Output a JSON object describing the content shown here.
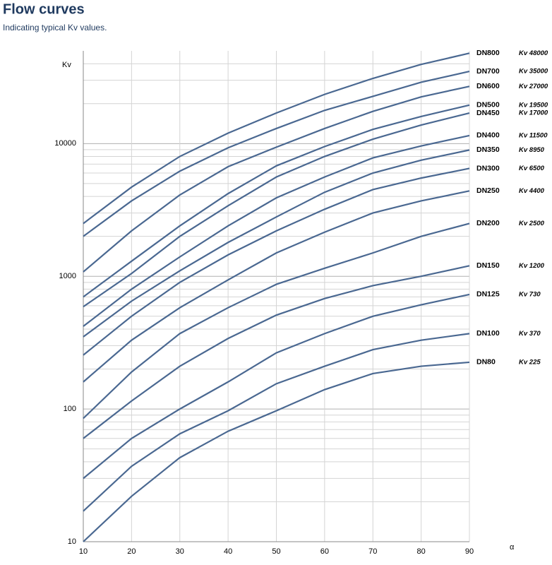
{
  "chart_data": {
    "type": "line",
    "title": "Flow curves",
    "subtitle": "Indicating typical Kv values.",
    "x_label": "α",
    "y_label": "Kv",
    "log_y": true,
    "grid": true,
    "color": "#4a6891",
    "x": [
      10,
      20,
      30,
      40,
      50,
      60,
      70,
      80,
      90
    ],
    "xlim": [
      10,
      90
    ],
    "xticks": [
      10,
      20,
      30,
      40,
      50,
      60,
      70,
      80,
      90
    ],
    "ylim": [
      10,
      50000
    ],
    "yticks": [
      10,
      100,
      1000,
      10000
    ],
    "y_minor_gridlines": [
      20,
      30,
      40,
      50,
      60,
      70,
      80,
      90,
      200,
      300,
      400,
      500,
      600,
      700,
      800,
      900,
      2000,
      3000,
      4000,
      5000,
      6000,
      7000,
      8000,
      9000,
      20000,
      30000,
      40000
    ],
    "series": [
      {
        "name": "DN800",
        "values": [
          2500,
          4700,
          8000,
          12000,
          17000,
          23500,
          31000,
          39500,
          48000
        ],
        "value_labels": [
          null,
          null,
          null,
          null,
          null,
          null,
          null,
          null,
          "Kv 48000"
        ]
      },
      {
        "name": "DN700",
        "values": [
          2000,
          3700,
          6200,
          9300,
          13000,
          17800,
          22700,
          29000,
          35000
        ],
        "value_labels": [
          null,
          null,
          null,
          null,
          null,
          null,
          null,
          null,
          "Kv 35000"
        ]
      },
      {
        "name": "DN600",
        "values": [
          1080,
          2200,
          4100,
          6700,
          9400,
          13000,
          17500,
          22500,
          27000
        ],
        "value_labels": [
          null,
          null,
          null,
          null,
          null,
          null,
          null,
          null,
          "Kv 27000"
        ]
      },
      {
        "name": "DN500",
        "values": [
          700,
          1300,
          2400,
          4200,
          6800,
          9500,
          12800,
          16000,
          19500
        ],
        "value_labels": [
          null,
          null,
          null,
          null,
          null,
          null,
          null,
          null,
          "Kv 19500"
        ]
      },
      {
        "name": "DN450",
        "values": [
          590,
          1050,
          2000,
          3400,
          5600,
          8000,
          10800,
          13800,
          17000
        ],
        "value_labels": [
          null,
          null,
          null,
          null,
          null,
          null,
          null,
          null,
          "Kv 17000"
        ]
      },
      {
        "name": "DN400",
        "values": [
          420,
          800,
          1400,
          2400,
          3900,
          5600,
          7800,
          9600,
          11500
        ],
        "value_labels": [
          null,
          null,
          null,
          null,
          null,
          null,
          null,
          null,
          "Kv 11500"
        ]
      },
      {
        "name": "DN350",
        "values": [
          350,
          650,
          1100,
          1800,
          2800,
          4300,
          6000,
          7500,
          8950
        ],
        "value_labels": [
          null,
          null,
          null,
          null,
          null,
          null,
          null,
          null,
          "Kv 8950"
        ]
      },
      {
        "name": "DN300",
        "values": [
          255,
          500,
          900,
          1450,
          2200,
          3200,
          4500,
          5500,
          6500
        ],
        "value_labels": [
          null,
          null,
          null,
          null,
          null,
          null,
          null,
          null,
          "Kv 6500"
        ]
      },
      {
        "name": "DN250",
        "values": [
          160,
          330,
          580,
          940,
          1500,
          2150,
          3000,
          3700,
          4400
        ],
        "value_labels": [
          null,
          null,
          null,
          null,
          null,
          null,
          null,
          null,
          "Kv 4400"
        ]
      },
      {
        "name": "DN200",
        "values": [
          85,
          190,
          370,
          580,
          870,
          1150,
          1500,
          2000,
          2500
        ],
        "value_labels": [
          null,
          null,
          null,
          null,
          null,
          null,
          null,
          null,
          "Kv 2500"
        ]
      },
      {
        "name": "DN150",
        "values": [
          60,
          115,
          210,
          340,
          510,
          680,
          850,
          1000,
          1200
        ],
        "value_labels": [
          null,
          null,
          null,
          null,
          null,
          null,
          null,
          null,
          "Kv 1200"
        ]
      },
      {
        "name": "DN125",
        "values": [
          30,
          60,
          100,
          160,
          265,
          370,
          500,
          610,
          730
        ],
        "value_labels": [
          null,
          null,
          null,
          null,
          null,
          null,
          null,
          null,
          "Kv 730"
        ]
      },
      {
        "name": "DN100",
        "values": [
          17,
          37,
          65,
          97,
          155,
          210,
          280,
          330,
          370
        ],
        "value_labels": [
          null,
          null,
          null,
          null,
          null,
          null,
          null,
          null,
          "Kv 370"
        ]
      },
      {
        "name": "DN80",
        "values": [
          10,
          22,
          43,
          68,
          97,
          140,
          185,
          210,
          225
        ],
        "value_labels": [
          null,
          null,
          null,
          null,
          null,
          null,
          null,
          null,
          "Kv 225"
        ]
      }
    ]
  }
}
